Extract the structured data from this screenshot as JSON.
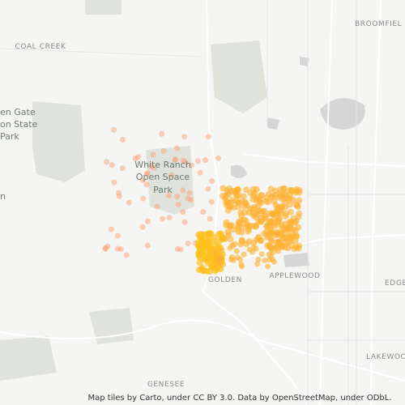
{
  "labels": {
    "broomfield": "BROOMFIEL",
    "coal_creek": "COAL CREEK",
    "state_park": [
      "en Gate",
      "on State",
      "Park"
    ],
    "left_edge": "n",
    "white_ranch": [
      "White Ranch",
      "Open Space",
      "Park"
    ],
    "golden": "GOLDEN",
    "applewood": "APPLEWOOD",
    "edge": "EDGE",
    "lakewood": "LAKEWOO",
    "genesee": "GENESEE"
  },
  "attribution": "Map tiles by Carto, under CC BY 3.0. Data by OpenStreetMap, under ODbL."
}
